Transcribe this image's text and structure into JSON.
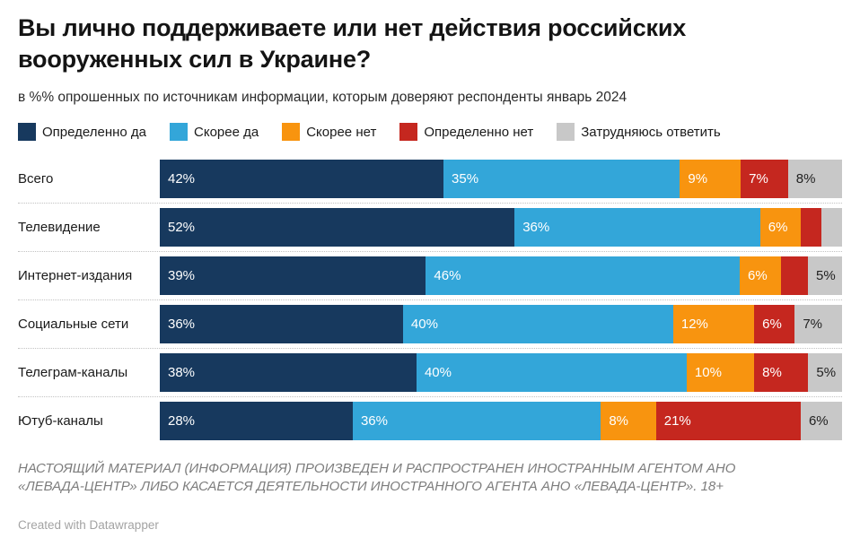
{
  "header": {
    "title": "Вы лично поддерживаете или нет действия российских вооруженных сил в Украине?",
    "subtitle": "в %% опрошенных по источникам информации, которым доверяют респонденты январь 2024"
  },
  "chart_data": {
    "type": "bar",
    "variant": "horizontal-stacked-100",
    "title": "Вы лично поддерживаете или нет действия российских вооруженных сил в Украине?",
    "subtitle": "в %% опрошенных по источникам информации, которым доверяют респонденты январь 2024",
    "legend_position": "top",
    "grid": false,
    "value_suffix": "%",
    "label_threshold": 5,
    "categories": [
      "Всего",
      "Телевидение",
      "Интернет-издания",
      "Социальные сети",
      "Телеграм-каналы",
      "Ютуб-каналы"
    ],
    "series": [
      {
        "name": "Определенно да",
        "color": "#17395e",
        "label_color": "#ffffff",
        "values": [
          42,
          52,
          39,
          36,
          38,
          28
        ]
      },
      {
        "name": "Скорее да",
        "color": "#33a6d9",
        "label_color": "#ffffff",
        "values": [
          35,
          36,
          46,
          40,
          40,
          36
        ]
      },
      {
        "name": "Скорее нет",
        "color": "#f8940f",
        "label_color": "#ffffff",
        "values": [
          9,
          6,
          6,
          12,
          10,
          8
        ]
      },
      {
        "name": "Определенно нет",
        "color": "#c5271f",
        "label_color": "#ffffff",
        "values": [
          7,
          3,
          4,
          6,
          8,
          21
        ]
      },
      {
        "name": "Затрудняюсь ответить",
        "color": "#c8c8c8",
        "label_color": "#222222",
        "values": [
          8,
          3,
          5,
          7,
          5,
          6
        ]
      }
    ]
  },
  "footer": {
    "notice": "НАСТОЯЩИЙ МАТЕРИАЛ (ИНФОРМАЦИЯ) ПРОИЗВЕДЕН И РАСПРОСТРАНЕН ИНОСТРАННЫМ АГЕНТОМ АНО «ЛЕВАДА-ЦЕНТР» ЛИБО КАСАЕТСЯ ДЕЯТЕЛЬНОСТИ ИНОСТРАННОГО АГЕНТА АНО «ЛЕВАДА-ЦЕНТР». 18+",
    "credit": "Created with Datawrapper"
  }
}
